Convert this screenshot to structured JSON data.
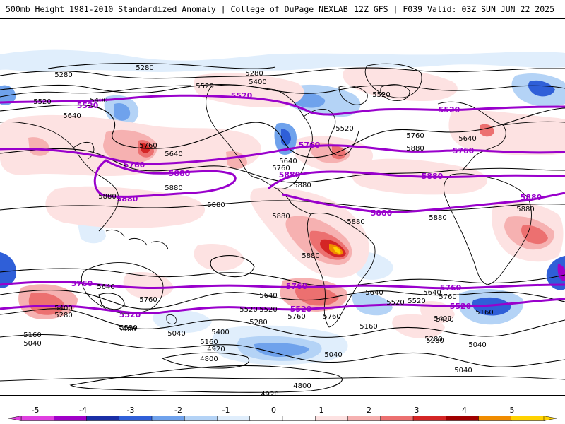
{
  "header": {
    "title_left": "500mb Height 1981-2010 Standardized Anomaly | College of DuPage NEXLAB",
    "title_right": "12Z GFS | F039 Valid: 03Z SUN JUN 22 2025"
  },
  "colors": {
    "thick_contour": "#9900cc",
    "thin_contour": "#000000",
    "coast": "#000000",
    "border": "#444444",
    "neg_levels": [
      "#e0eefc",
      "#b4d3f6",
      "#6fa2ec",
      "#2f5fd8",
      "#1a2ea6",
      "#a000c8",
      "#e040e0"
    ],
    "pos_levels": [
      "#fde2e2",
      "#f6b1b1",
      "#ec7070",
      "#d42525",
      "#a00000",
      "#f08c00",
      "#ffd200"
    ]
  },
  "map": {
    "projection": "cylindrical equidistant",
    "thin_contour_labels": [
      "5280",
      "5280",
      "5280",
      "5400",
      "5400",
      "5520",
      "5520",
      "5520",
      "5520",
      "5640",
      "5640",
      "5640",
      "5640",
      "5760",
      "5760",
      "5760",
      "5760",
      "5760",
      "5880",
      "5880",
      "5880",
      "5880",
      "5880",
      "5880",
      "5880",
      "5880",
      "5880",
      "5880",
      "5640",
      "5760",
      "5640",
      "5520",
      "5400",
      "5280",
      "5160",
      "5040",
      "5400",
      "5520",
      "5640",
      "5760",
      "5640",
      "5520",
      "5400",
      "5280",
      "5160",
      "5040",
      "4920",
      "4800",
      "4800",
      "4920",
      "5040",
      "5160",
      "5280",
      "5400",
      "5160",
      "5040",
      "5280",
      "5040",
      "5520",
      "5400",
      "5520"
    ],
    "thick_contour_labels": [
      "5520",
      "5520",
      "5520",
      "5760",
      "5760",
      "5760",
      "5880",
      "5880",
      "5880",
      "5880",
      "5880",
      "5880",
      "5760",
      "5760",
      "5760",
      "5520",
      "5520",
      "5520"
    ]
  },
  "colorbar": {
    "tick_labels": [
      "-5",
      "-4",
      "-3",
      "-2",
      "-1",
      "0",
      "1",
      "2",
      "3",
      "4",
      "5"
    ],
    "segment_colors": [
      "#e040e0",
      "#a000c8",
      "#1a2ea6",
      "#2f5fd8",
      "#6fa2ec",
      "#b4d3f6",
      "#e0eefc",
      "#ffffff",
      "#ffffff",
      "#fde2e2",
      "#f6b1b1",
      "#ec7070",
      "#d42525",
      "#a00000",
      "#f08c00",
      "#ffd200"
    ]
  }
}
